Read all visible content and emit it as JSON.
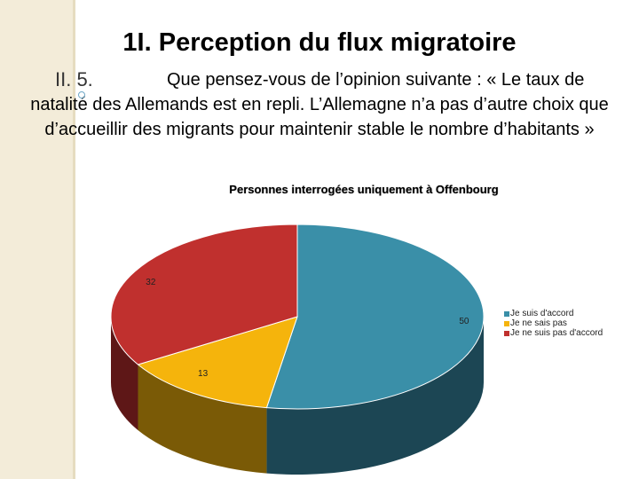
{
  "slide": {
    "title": "1I.  Perception du flux migratoire",
    "number": "II. 5.",
    "question_line1": "Que pensez-vous de l’opinion suivante : « Le taux de",
    "question_rest": "natalité des Allemands est en repli. L’Allemagne n’a pas d’autre choix que d’accueillir des migrants pour maintenir stable le nombre d’habitants »"
  },
  "chart_data": {
    "type": "pie",
    "title": "Personnes interrogées uniquement à Offenbourg",
    "categories": [
      "Je suis d'accord",
      "Je ne sais pas",
      "Je ne suis pas d'accord"
    ],
    "values": [
      50,
      13,
      32
    ],
    "colors": [
      "#3a8fa8",
      "#f5b40c",
      "#c0302e"
    ],
    "side_colors": [
      "#1c4654",
      "#7a5a06",
      "#5e1717"
    ],
    "legend_position": "right",
    "style": "3d"
  }
}
